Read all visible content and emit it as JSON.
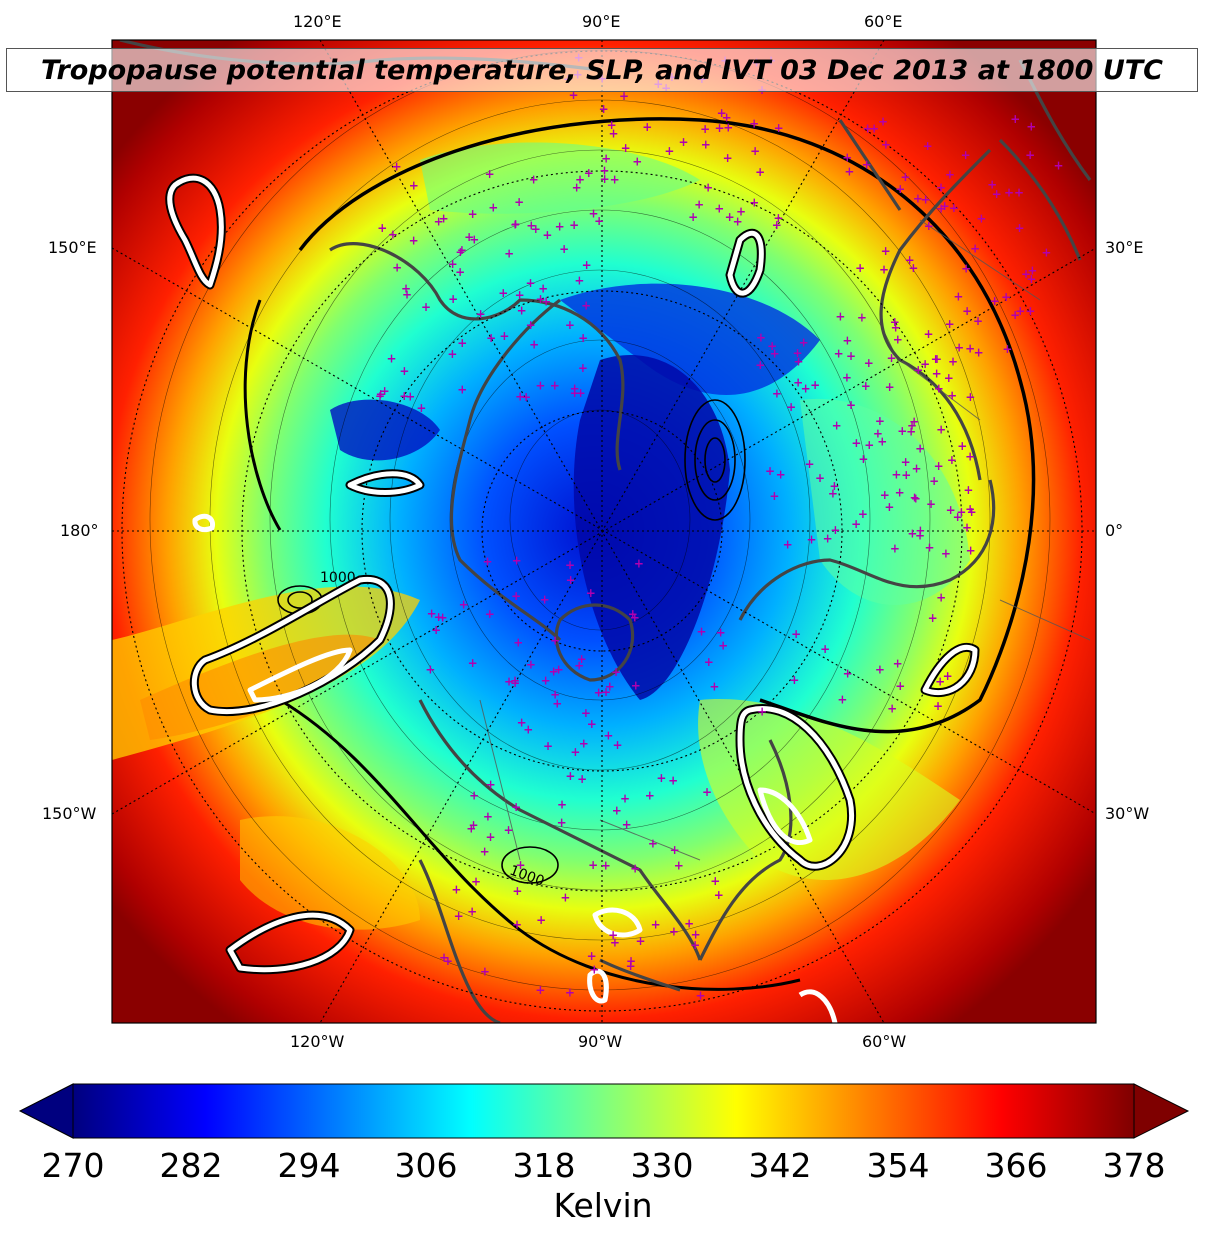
{
  "title": "Tropopause potential temperature, SLP, and IVT 03 Dec 2013 at 1800 UTC",
  "lon_labels": {
    "top": [
      "120°E",
      "90°E",
      "60°E"
    ],
    "bottom": [
      "120°W",
      "90°W",
      "60°W"
    ],
    "left": [
      "150°E",
      "180°",
      "150°W"
    ],
    "right": [
      "30°E",
      "0°",
      "30°W"
    ]
  },
  "slp_contour_labels": [
    "1000",
    "1000"
  ],
  "colorbar": {
    "label": "Kelvin",
    "ticks": [
      "270",
      "282",
      "294",
      "306",
      "318",
      "330",
      "342",
      "354",
      "366",
      "378"
    ],
    "min": 270,
    "max": 378,
    "extend": "both",
    "colormap": "jet",
    "colors": [
      "#00007f",
      "#0000ff",
      "#007fff",
      "#00ffff",
      "#7fff7f",
      "#ffff00",
      "#ff7f00",
      "#ff0000",
      "#7f0000"
    ]
  },
  "overlays": {
    "coastline_color": "#444444",
    "slp_contour_color": "#000000",
    "ivt_contour_color": "#ffffff",
    "marker_color": "#b000b0",
    "graticule": "dotted"
  }
}
